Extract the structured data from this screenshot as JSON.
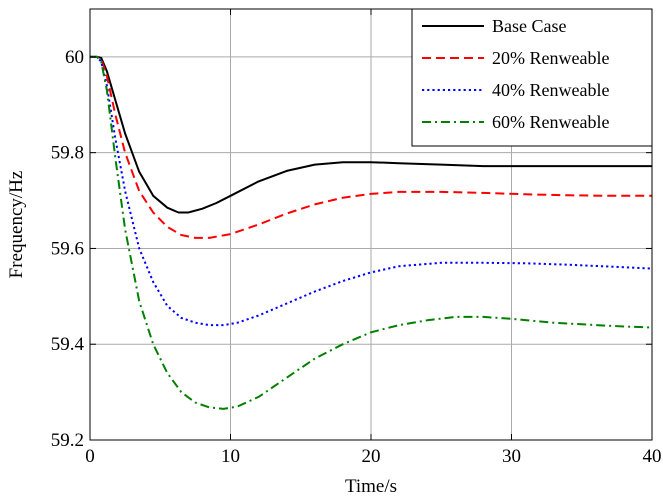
{
  "chart_data": {
    "type": "line",
    "title": "",
    "xlabel": "Time/s",
    "ylabel": "Frequency/Hz",
    "xlim": [
      0,
      40
    ],
    "ylim": [
      59.2,
      60.1
    ],
    "xticks": [
      0,
      10,
      20,
      30,
      40
    ],
    "yticks": [
      59.2,
      59.4,
      59.6,
      59.8,
      60
    ],
    "xtick_labels": [
      "0",
      "10",
      "20",
      "30",
      "40"
    ],
    "ytick_labels": [
      "59.2",
      "59.4",
      "59.6",
      "59.8",
      "60"
    ],
    "grid": true,
    "legend_position": "top-right",
    "series": [
      {
        "name": "Base Case",
        "color": "#000000",
        "style": "solid",
        "x": [
          0,
          0.5,
          0.8,
          1.2,
          1.8,
          2.5,
          3.5,
          4.5,
          5.5,
          6.3,
          7,
          8,
          9,
          10,
          12,
          14,
          16,
          18,
          20,
          22,
          25,
          28,
          31,
          34,
          37,
          40
        ],
        "y": [
          60,
          60,
          59.998,
          59.97,
          59.91,
          59.84,
          59.76,
          59.71,
          59.685,
          59.675,
          59.675,
          59.683,
          59.695,
          59.71,
          59.74,
          59.762,
          59.775,
          59.78,
          59.78,
          59.778,
          59.775,
          59.772,
          59.772,
          59.772,
          59.772,
          59.772
        ]
      },
      {
        "name": "20% Renweable",
        "color": "#ff0000",
        "style": "dashed",
        "x": [
          0,
          0.5,
          0.8,
          1.2,
          1.8,
          2.5,
          3.5,
          4.5,
          5.5,
          6.5,
          7.5,
          8.5,
          10,
          12,
          14,
          16,
          18,
          20,
          22,
          25,
          28,
          31,
          34,
          37,
          40
        ],
        "y": [
          60,
          60,
          59.995,
          59.96,
          59.88,
          59.8,
          59.72,
          59.675,
          59.645,
          59.628,
          59.622,
          59.622,
          59.63,
          59.65,
          59.673,
          59.692,
          59.706,
          59.714,
          59.718,
          59.718,
          59.716,
          59.713,
          59.711,
          59.71,
          59.71
        ]
      },
      {
        "name": "40% Renweable",
        "color": "#0000ff",
        "style": "dotted",
        "x": [
          0,
          0.5,
          0.8,
          1.2,
          1.8,
          2.5,
          3.5,
          4.5,
          5.5,
          6.5,
          7.5,
          8.5,
          9.5,
          10.5,
          12,
          14,
          16,
          18,
          20,
          22,
          25,
          28,
          31,
          34,
          37,
          40
        ],
        "y": [
          60,
          60,
          59.99,
          59.94,
          59.83,
          59.72,
          59.6,
          59.53,
          59.48,
          59.455,
          59.445,
          59.44,
          59.44,
          59.445,
          59.46,
          59.485,
          59.51,
          59.532,
          59.55,
          59.563,
          59.57,
          59.57,
          59.569,
          59.566,
          59.562,
          59.558
        ]
      },
      {
        "name": "60% Renweable",
        "color": "#008000",
        "style": "dashdot",
        "x": [
          0,
          0.5,
          0.8,
          1.2,
          1.8,
          2.5,
          3.5,
          4.5,
          5.5,
          6.5,
          7.5,
          8.5,
          9.5,
          10.5,
          12,
          14,
          16,
          18,
          20,
          22,
          24,
          26,
          28,
          30,
          33,
          36,
          38,
          40
        ],
        "y": [
          60,
          60,
          59.99,
          59.93,
          59.79,
          59.64,
          59.49,
          59.4,
          59.34,
          59.3,
          59.278,
          59.268,
          59.265,
          59.27,
          59.29,
          59.33,
          59.37,
          59.4,
          59.425,
          59.44,
          59.45,
          59.457,
          59.457,
          59.453,
          59.445,
          59.44,
          59.437,
          59.435
        ]
      }
    ]
  }
}
